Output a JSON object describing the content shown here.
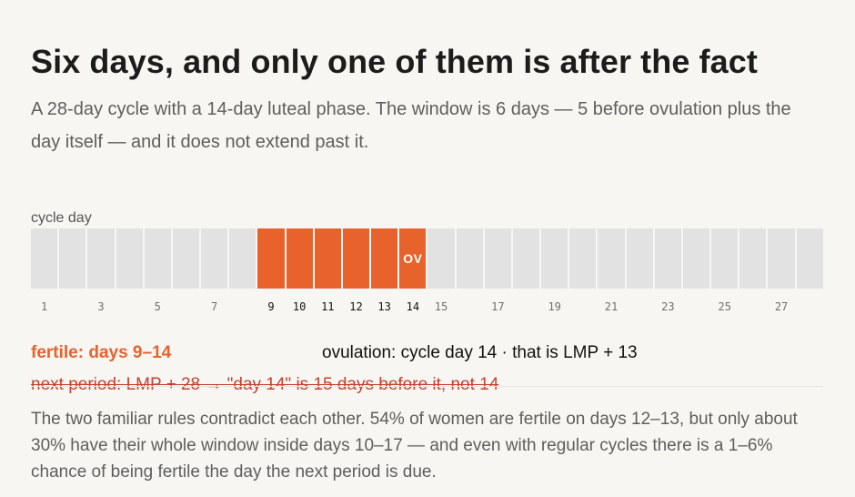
{
  "title": "Six days, and only one of them is after the fact",
  "subtitle": "A 28-day cycle with a 14-day luteal phase. The window is 6 days — 5 before ovulation plus the day itself — and it does not extend past it.",
  "axis_label": "cycle day",
  "cycle": {
    "days": [
      1,
      2,
      3,
      4,
      5,
      6,
      7,
      8,
      9,
      10,
      11,
      12,
      13,
      14,
      15,
      16,
      17,
      18,
      19,
      20,
      21,
      22,
      23,
      24,
      25,
      26,
      27,
      28
    ],
    "fertile_days": [
      9,
      10,
      11,
      12,
      13,
      14
    ],
    "ovulation_day": 14,
    "ovulation_marker": "OV",
    "tick_labels": [
      "1",
      "",
      "3",
      "",
      "5",
      "",
      "7",
      "",
      "9",
      "10",
      "11",
      "12",
      "13",
      "14",
      "15",
      "",
      "17",
      "",
      "19",
      "",
      "21",
      "",
      "23",
      "",
      "25",
      "",
      "27",
      ""
    ]
  },
  "colors": {
    "fertile": "#e8622c",
    "day": "#e2e2e2",
    "strike": "#c8412f"
  },
  "labels": {
    "fertile": "fertile: days 9–14",
    "ovulation": "ovulation: cycle day 14  ·  that is LMP + 13",
    "wrong_rule": "next period: LMP + 28  →  \"day 14\" is 15 days before it, not 14"
  },
  "note": "The two familiar rules contradict each other. 54% of women are fertile on days 12–13, but only about 30% have their whole window inside days 10–17 — and even with regular cycles there is a 1–6% chance of being fertile the day the next period is due."
}
